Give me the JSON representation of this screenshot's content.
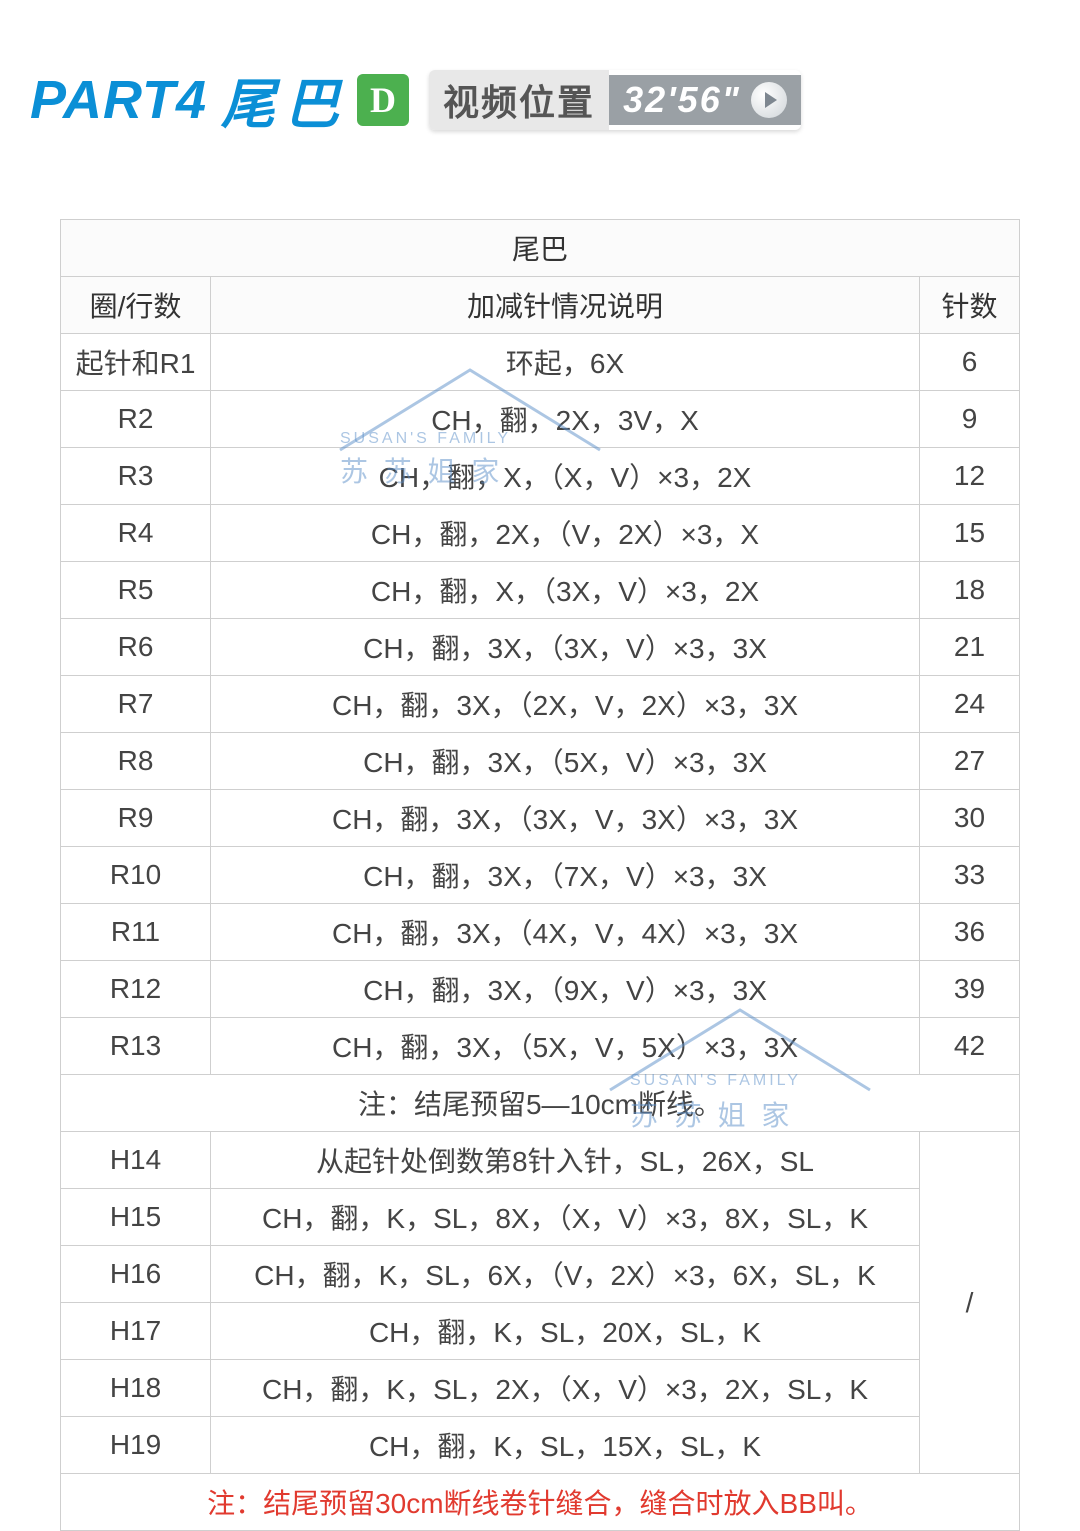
{
  "header": {
    "part_label": "PART4",
    "part_title": "尾巴",
    "badge": "D",
    "video_label": "视频位置",
    "video_time": "32'56\""
  },
  "table": {
    "title": "尾巴",
    "col_round": "圈/行数",
    "col_desc": "加减针情况说明",
    "col_count": "针数",
    "rows_top": [
      {
        "round": "起针和R1",
        "desc": "环起，6X",
        "count": "6"
      },
      {
        "round": "R2",
        "desc": "CH，翻，2X，3V，X",
        "count": "9"
      },
      {
        "round": "R3",
        "desc": "CH，翻，X，（X，V）×3，2X",
        "count": "12"
      },
      {
        "round": "R4",
        "desc": "CH，翻，2X，（V，2X）×3，X",
        "count": "15"
      },
      {
        "round": "R5",
        "desc": "CH，翻，X，（3X，V）×3，2X",
        "count": "18"
      },
      {
        "round": "R6",
        "desc": "CH，翻，3X，（3X，V）×3，3X",
        "count": "21"
      },
      {
        "round": "R7",
        "desc": "CH，翻，3X，（2X，V，2X）×3，3X",
        "count": "24"
      },
      {
        "round": "R8",
        "desc": "CH，翻，3X，（5X，V）×3，3X",
        "count": "27"
      },
      {
        "round": "R9",
        "desc": "CH，翻，3X，（3X，V，3X）×3，3X",
        "count": "30"
      },
      {
        "round": "R10",
        "desc": "CH，翻，3X，（7X，V）×3，3X",
        "count": "33"
      },
      {
        "round": "R11",
        "desc": "CH，翻，3X，（4X，V，4X）×3，3X",
        "count": "36"
      },
      {
        "round": "R12",
        "desc": "CH，翻，3X，（9X，V）×3，3X",
        "count": "39"
      },
      {
        "round": "R13",
        "desc": "CH，翻，3X，（5X，V，5X）×3，3X",
        "count": "42"
      }
    ],
    "note1": "注：结尾预留5—10cm断线。",
    "rows_bottom": [
      {
        "round": "H14",
        "desc": "从起针处倒数第8针入针，SL，26X，SL"
      },
      {
        "round": "H15",
        "desc": "CH，翻，K，SL，8X，（X，V）×3，8X，SL，K"
      },
      {
        "round": "H16",
        "desc": "CH，翻，K，SL，6X，（V，2X）×3，6X，SL，K"
      },
      {
        "round": "H17",
        "desc": "CH，翻，K，SL，20X，SL，K"
      },
      {
        "round": "H18",
        "desc": "CH，翻，K，SL，2X，（X，V）×3，2X，SL，K"
      },
      {
        "round": "H19",
        "desc": "CH，翻，K，SL，15X，SL，K"
      }
    ],
    "bottom_count": "/",
    "note2": "注：结尾预留30cm断线卷针缝合，缝合时放入BB叫。"
  },
  "watermarks": {
    "en": "SUSAN'S FAMILY",
    "cn": "苏 苏 姐 家"
  },
  "colors": {
    "brand_blue": "#0b8fd6",
    "badge_green": "#4cb04f",
    "time_bg": "#9aa0a5",
    "border": "#cfcfcf",
    "note_red": "#e13a2f",
    "wm_blue": "#5b8fc9"
  }
}
